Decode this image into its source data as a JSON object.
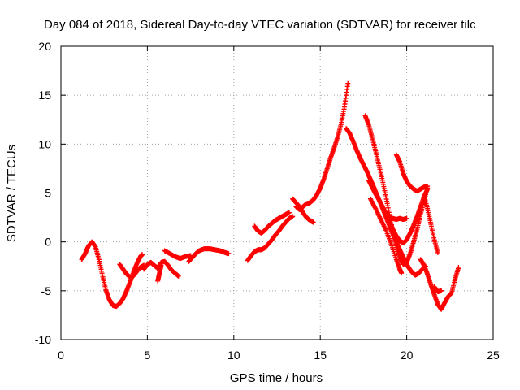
{
  "chart_data": {
    "type": "scatter",
    "title": "Day 084 of 2018, Sidereal Day-to-day VTEC variation (SDTVAR) for receiver tilc",
    "xlabel": "GPS time / hours",
    "ylabel": "SDTVAR / TECUs",
    "xlim": [
      0,
      25
    ],
    "ylim": [
      -10,
      20
    ],
    "xticks": [
      0,
      5,
      10,
      15,
      20,
      25
    ],
    "yticks": [
      -10,
      -5,
      0,
      5,
      10,
      15,
      20
    ],
    "grid": true,
    "marker": "+",
    "series": [
      {
        "color": "#ff0000",
        "tracks": [
          [
            [
              1.2,
              -1.8
            ],
            [
              1.4,
              -1.2
            ],
            [
              1.6,
              -0.4
            ],
            [
              1.8,
              0.0
            ],
            [
              2.0,
              -0.5
            ],
            [
              2.2,
              -1.8
            ],
            [
              2.4,
              -3.4
            ],
            [
              2.6,
              -4.9
            ],
            [
              2.8,
              -5.9
            ],
            [
              3.0,
              -6.5
            ],
            [
              3.2,
              -6.6
            ],
            [
              3.4,
              -6.3
            ],
            [
              3.6,
              -5.8
            ],
            [
              3.8,
              -5.0
            ],
            [
              4.0,
              -4.1
            ],
            [
              4.2,
              -3.1
            ],
            [
              4.4,
              -2.2
            ],
            [
              4.6,
              -1.5
            ],
            [
              4.7,
              -1.3
            ]
          ],
          [
            [
              3.4,
              -2.3
            ],
            [
              3.6,
              -2.8
            ],
            [
              3.8,
              -3.3
            ],
            [
              4.0,
              -3.6
            ],
            [
              4.2,
              -3.5
            ],
            [
              4.4,
              -3.0
            ],
            [
              4.6,
              -2.6
            ],
            [
              4.8,
              -2.4
            ]
          ],
          [
            [
              4.8,
              -2.8
            ],
            [
              5.0,
              -2.3
            ],
            [
              5.2,
              -2.1
            ],
            [
              5.4,
              -2.4
            ],
            [
              5.6,
              -2.7
            ],
            [
              5.8,
              -2.1
            ],
            [
              6.0,
              -2.0
            ],
            [
              6.2,
              -2.4
            ],
            [
              6.4,
              -2.9
            ],
            [
              6.6,
              -3.2
            ],
            [
              6.8,
              -3.5
            ]
          ],
          [
            [
              5.6,
              -4.0
            ],
            [
              5.7,
              -3.2
            ],
            [
              5.8,
              -2.4
            ]
          ],
          [
            [
              6.0,
              -0.9
            ],
            [
              6.3,
              -1.2
            ],
            [
              6.6,
              -1.5
            ],
            [
              6.9,
              -1.7
            ],
            [
              7.2,
              -1.5
            ],
            [
              7.5,
              -1.4
            ]
          ],
          [
            [
              7.4,
              -2.0
            ],
            [
              7.6,
              -1.6
            ],
            [
              7.8,
              -1.2
            ],
            [
              8.0,
              -0.9
            ],
            [
              8.3,
              -0.7
            ],
            [
              8.6,
              -0.7
            ],
            [
              8.9,
              -0.8
            ],
            [
              9.2,
              -0.9
            ],
            [
              9.5,
              -1.1
            ],
            [
              9.7,
              -1.2
            ]
          ],
          [
            [
              10.8,
              -1.9
            ],
            [
              11.0,
              -1.4
            ],
            [
              11.2,
              -1.0
            ],
            [
              11.4,
              -0.8
            ],
            [
              11.6,
              -0.8
            ],
            [
              11.8,
              -0.6
            ],
            [
              12.0,
              -0.2
            ],
            [
              12.2,
              0.2
            ],
            [
              12.4,
              0.7
            ],
            [
              12.6,
              1.1
            ],
            [
              12.8,
              1.6
            ],
            [
              13.0,
              2.0
            ],
            [
              13.2,
              2.4
            ],
            [
              13.4,
              2.6
            ]
          ],
          [
            [
              11.2,
              1.6
            ],
            [
              11.4,
              1.1
            ],
            [
              11.6,
              0.9
            ],
            [
              11.8,
              1.2
            ],
            [
              12.0,
              1.6
            ],
            [
              12.2,
              1.9
            ],
            [
              12.4,
              2.2
            ],
            [
              12.6,
              2.4
            ],
            [
              12.8,
              2.6
            ],
            [
              13.0,
              2.8
            ],
            [
              13.2,
              3.0
            ]
          ],
          [
            [
              13.4,
              4.4
            ],
            [
              13.6,
              4.0
            ],
            [
              13.8,
              3.6
            ],
            [
              14.0,
              3.0
            ],
            [
              14.2,
              2.5
            ],
            [
              14.4,
              2.2
            ],
            [
              14.6,
              2.0
            ]
          ],
          [
            [
              13.6,
              3.6
            ],
            [
              13.8,
              3.3
            ],
            [
              14.0,
              3.6
            ],
            [
              14.2,
              3.9
            ],
            [
              14.4,
              4.0
            ],
            [
              14.6,
              4.3
            ],
            [
              14.8,
              4.8
            ],
            [
              15.0,
              5.5
            ],
            [
              15.2,
              6.4
            ],
            [
              15.4,
              7.5
            ],
            [
              15.6,
              8.6
            ],
            [
              15.8,
              9.6
            ],
            [
              16.0,
              10.7
            ],
            [
              16.2,
              12.0
            ],
            [
              16.4,
              13.8
            ],
            [
              16.6,
              16.2
            ]
          ],
          [
            [
              16.5,
              11.6
            ],
            [
              16.7,
              11.1
            ],
            [
              16.9,
              10.3
            ],
            [
              17.1,
              9.4
            ],
            [
              17.3,
              8.6
            ],
            [
              17.5,
              7.9
            ],
            [
              17.7,
              7.2
            ],
            [
              17.9,
              6.4
            ],
            [
              18.1,
              5.6
            ],
            [
              18.3,
              4.7
            ],
            [
              18.5,
              3.9
            ],
            [
              18.7,
              3.0
            ],
            [
              18.9,
              2.1
            ],
            [
              19.1,
              1.2
            ],
            [
              19.3,
              0.4
            ],
            [
              19.5,
              -0.4
            ],
            [
              19.7,
              -1.2
            ],
            [
              19.9,
              -1.9
            ],
            [
              20.1,
              -2.6
            ],
            [
              20.3,
              -3.1
            ],
            [
              20.5,
              -3.4
            ],
            [
              20.7,
              -3.2
            ],
            [
              20.9,
              -2.8
            ],
            [
              21.1,
              -2.5
            ]
          ],
          [
            [
              17.6,
              12.9
            ],
            [
              17.8,
              12.0
            ],
            [
              18.0,
              10.7
            ],
            [
              18.2,
              9.3
            ],
            [
              18.4,
              7.8
            ],
            [
              18.6,
              6.3
            ],
            [
              18.8,
              4.6
            ],
            [
              19.0,
              2.8
            ],
            [
              19.2,
              1.1
            ],
            [
              19.4,
              -0.4
            ],
            [
              19.6,
              -1.6
            ],
            [
              19.8,
              -2.3
            ],
            [
              20.0,
              -2.1
            ],
            [
              20.2,
              -1.2
            ],
            [
              20.4,
              0.0
            ],
            [
              20.6,
              1.3
            ],
            [
              20.8,
              2.8
            ],
            [
              21.0,
              4.2
            ],
            [
              21.2,
              5.5
            ]
          ],
          [
            [
              17.8,
              6.3
            ],
            [
              18.0,
              5.6
            ],
            [
              18.2,
              4.9
            ],
            [
              18.4,
              4.3
            ],
            [
              18.6,
              3.6
            ],
            [
              18.8,
              2.9
            ],
            [
              19.0,
              2.1
            ],
            [
              19.2,
              1.3
            ],
            [
              19.4,
              0.6
            ],
            [
              19.6,
              0.1
            ],
            [
              19.8,
              -0.1
            ],
            [
              20.0,
              0.2
            ],
            [
              20.2,
              0.9
            ],
            [
              20.4,
              1.7
            ],
            [
              20.6,
              2.6
            ],
            [
              20.8,
              3.6
            ],
            [
              21.0,
              4.6
            ],
            [
              21.2,
              5.4
            ]
          ],
          [
            [
              17.9,
              4.4
            ],
            [
              18.2,
              3.4
            ],
            [
              18.5,
              2.3
            ],
            [
              18.8,
              1.2
            ],
            [
              19.1,
              -0.2
            ],
            [
              19.4,
              -1.8
            ],
            [
              19.6,
              -2.8
            ],
            [
              19.7,
              -3.2
            ]
          ],
          [
            [
              19.4,
              8.9
            ],
            [
              19.6,
              8.2
            ],
            [
              19.8,
              7.0
            ],
            [
              20.0,
              6.2
            ],
            [
              20.2,
              5.7
            ],
            [
              20.4,
              5.4
            ],
            [
              20.6,
              5.2
            ],
            [
              20.8,
              5.4
            ],
            [
              21.0,
              5.6
            ],
            [
              21.2,
              5.7
            ]
          ],
          [
            [
              19.0,
              2.5
            ],
            [
              19.2,
              2.4
            ],
            [
              19.4,
              2.3
            ],
            [
              19.6,
              2.4
            ],
            [
              19.8,
              2.3
            ],
            [
              20.0,
              2.4
            ]
          ],
          [
            [
              21.0,
              4.8
            ],
            [
              21.2,
              3.4
            ],
            [
              21.4,
              1.8
            ],
            [
              21.6,
              0.2
            ],
            [
              21.8,
              -1.1
            ]
          ],
          [
            [
              20.8,
              -1.8
            ],
            [
              21.0,
              -2.4
            ],
            [
              21.2,
              -3.3
            ],
            [
              21.4,
              -4.4
            ],
            [
              21.6,
              -5.4
            ],
            [
              21.8,
              -6.4
            ],
            [
              22.0,
              -6.9
            ],
            [
              22.2,
              -6.2
            ],
            [
              22.4,
              -5.6
            ],
            [
              22.6,
              -5.2
            ],
            [
              22.8,
              -3.8
            ],
            [
              23.0,
              -2.6
            ]
          ],
          [
            [
              21.6,
              -4.6
            ],
            [
              21.8,
              -5.1
            ],
            [
              22.0,
              -5.0
            ]
          ]
        ]
      }
    ]
  }
}
